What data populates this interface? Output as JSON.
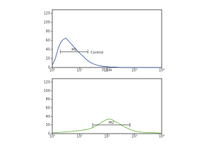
{
  "chart_data": [
    {
      "type": "line",
      "log_x": true,
      "xlim": [
        1,
        10000
      ],
      "ylim": [
        0,
        128
      ],
      "xticks": [
        {
          "value": 1,
          "label": "10⁰"
        },
        {
          "value": 10,
          "label": "10¹"
        },
        {
          "value": 100,
          "label": "10²"
        },
        {
          "value": 1000,
          "label": "10³"
        },
        {
          "value": 10000,
          "label": "10⁴"
        }
      ],
      "yticks": [
        0,
        20,
        40,
        60,
        80,
        100,
        120
      ],
      "x_label": "FL1-H",
      "x": [
        1,
        1.3,
        1.6,
        2,
        2.5,
        3.2,
        4,
        5,
        6.3,
        8,
        10,
        13,
        16,
        20,
        25,
        32,
        40,
        50,
        63,
        80,
        100,
        130,
        160,
        200,
        320,
        500,
        1000,
        10000
      ],
      "series": [
        {
          "color": "#2a4f9e",
          "values": [
            5,
            20,
            40,
            55,
            62,
            65,
            58,
            52,
            45,
            38,
            32,
            26,
            20,
            15,
            11,
            8,
            6,
            4,
            3,
            2,
            2,
            1,
            1,
            1,
            0,
            0,
            0,
            0
          ]
        }
      ],
      "gate": {
        "label": "M1",
        "range": [
          2,
          20
        ],
        "y": 35
      },
      "annotation": "Control"
    },
    {
      "type": "line",
      "log_x": true,
      "xlim": [
        1,
        10000
      ],
      "ylim": [
        0,
        128
      ],
      "xticks": [
        {
          "value": 1,
          "label": "10⁰"
        },
        {
          "value": 10,
          "label": "10¹"
        },
        {
          "value": 100,
          "label": "10²"
        },
        {
          "value": 1000,
          "label": "10³"
        },
        {
          "value": 10000,
          "label": "10⁴"
        }
      ],
      "yticks": [
        0,
        20,
        40,
        60,
        80,
        100,
        120
      ],
      "x": [
        1,
        2,
        5,
        10,
        20,
        30,
        40,
        50,
        63,
        80,
        100,
        130,
        160,
        200,
        250,
        320,
        400,
        500,
        630,
        800,
        1000,
        2000,
        5000,
        10000
      ],
      "series": [
        {
          "color": "#5fb336",
          "values": [
            2,
            3,
            5,
            7,
            10,
            14,
            18,
            22,
            26,
            30,
            33,
            34,
            32,
            28,
            25,
            21,
            17,
            14,
            11,
            8,
            6,
            3,
            2,
            1
          ]
        }
      ],
      "gate": {
        "label": "M2",
        "range": [
          30,
          700
        ],
        "y": 20
      }
    }
  ]
}
